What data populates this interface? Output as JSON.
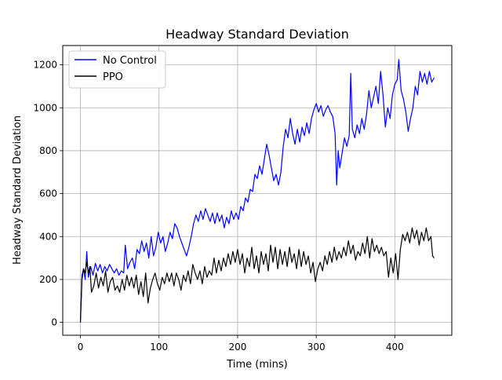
{
  "chart_data": {
    "type": "line",
    "title": "Headway Standard Deviation",
    "xlabel": "Time (mins)",
    "ylabel": "Headway Standard Deviation",
    "xlim": [
      -22.5,
      472.5
    ],
    "ylim": [
      -60,
      1290
    ],
    "xticks": [
      0,
      100,
      200,
      300,
      400
    ],
    "yticks": [
      0,
      200,
      400,
      600,
      800,
      1000,
      1200
    ],
    "grid": true,
    "legend_position": "top-left",
    "series": [
      {
        "name": "No Control",
        "color": "#0000ff",
        "points": [
          [
            0,
            0
          ],
          [
            2,
            220
          ],
          [
            4,
            250
          ],
          [
            6,
            200
          ],
          [
            8,
            330
          ],
          [
            10,
            210
          ],
          [
            13,
            260
          ],
          [
            16,
            220
          ],
          [
            19,
            275
          ],
          [
            22,
            240
          ],
          [
            25,
            270
          ],
          [
            28,
            230
          ],
          [
            31,
            260
          ],
          [
            34,
            240
          ],
          [
            37,
            270
          ],
          [
            40,
            250
          ],
          [
            43,
            230
          ],
          [
            46,
            250
          ],
          [
            49,
            220
          ],
          [
            52,
            240
          ],
          [
            55,
            230
          ],
          [
            57,
            360
          ],
          [
            60,
            250
          ],
          [
            63,
            280
          ],
          [
            66,
            300
          ],
          [
            69,
            250
          ],
          [
            72,
            340
          ],
          [
            75,
            320
          ],
          [
            78,
            380
          ],
          [
            81,
            330
          ],
          [
            84,
            370
          ],
          [
            87,
            300
          ],
          [
            90,
            400
          ],
          [
            93,
            310
          ],
          [
            96,
            350
          ],
          [
            99,
            420
          ],
          [
            102,
            370
          ],
          [
            105,
            400
          ],
          [
            108,
            330
          ],
          [
            111,
            370
          ],
          [
            114,
            420
          ],
          [
            117,
            390
          ],
          [
            120,
            460
          ],
          [
            123,
            440
          ],
          [
            126,
            400
          ],
          [
            129,
            370
          ],
          [
            132,
            340
          ],
          [
            135,
            310
          ],
          [
            138,
            350
          ],
          [
            141,
            400
          ],
          [
            144,
            460
          ],
          [
            147,
            500
          ],
          [
            150,
            470
          ],
          [
            153,
            520
          ],
          [
            156,
            480
          ],
          [
            159,
            530
          ],
          [
            162,
            500
          ],
          [
            165,
            470
          ],
          [
            168,
            510
          ],
          [
            171,
            460
          ],
          [
            174,
            510
          ],
          [
            177,
            470
          ],
          [
            180,
            500
          ],
          [
            183,
            440
          ],
          [
            186,
            490
          ],
          [
            189,
            460
          ],
          [
            192,
            520
          ],
          [
            195,
            480
          ],
          [
            198,
            510
          ],
          [
            201,
            480
          ],
          [
            204,
            540
          ],
          [
            207,
            520
          ],
          [
            210,
            580
          ],
          [
            213,
            560
          ],
          [
            216,
            620
          ],
          [
            219,
            610
          ],
          [
            222,
            690
          ],
          [
            225,
            670
          ],
          [
            228,
            730
          ],
          [
            231,
            690
          ],
          [
            234,
            760
          ],
          [
            237,
            830
          ],
          [
            240,
            780
          ],
          [
            243,
            720
          ],
          [
            246,
            660
          ],
          [
            249,
            690
          ],
          [
            252,
            640
          ],
          [
            255,
            700
          ],
          [
            258,
            820
          ],
          [
            261,
            900
          ],
          [
            264,
            860
          ],
          [
            267,
            950
          ],
          [
            270,
            880
          ],
          [
            273,
            830
          ],
          [
            276,
            900
          ],
          [
            279,
            840
          ],
          [
            282,
            910
          ],
          [
            285,
            870
          ],
          [
            288,
            930
          ],
          [
            291,
            880
          ],
          [
            294,
            950
          ],
          [
            297,
            990
          ],
          [
            300,
            1020
          ],
          [
            303,
            980
          ],
          [
            306,
            1010
          ],
          [
            309,
            960
          ],
          [
            312,
            990
          ],
          [
            315,
            1010
          ],
          [
            318,
            980
          ],
          [
            321,
            960
          ],
          [
            324,
            880
          ],
          [
            326,
            640
          ],
          [
            328,
            800
          ],
          [
            330,
            720
          ],
          [
            333,
            790
          ],
          [
            336,
            860
          ],
          [
            339,
            820
          ],
          [
            342,
            870
          ],
          [
            344,
            1160
          ],
          [
            346,
            900
          ],
          [
            349,
            860
          ],
          [
            352,
            920
          ],
          [
            355,
            880
          ],
          [
            358,
            950
          ],
          [
            361,
            900
          ],
          [
            364,
            970
          ],
          [
            367,
            1080
          ],
          [
            370,
            1000
          ],
          [
            373,
            1050
          ],
          [
            376,
            1100
          ],
          [
            379,
            1020
          ],
          [
            382,
            1170
          ],
          [
            385,
            1060
          ],
          [
            388,
            910
          ],
          [
            391,
            1000
          ],
          [
            394,
            950
          ],
          [
            397,
            1060
          ],
          [
            400,
            1110
          ],
          [
            403,
            1130
          ],
          [
            405,
            1225
          ],
          [
            408,
            1080
          ],
          [
            411,
            1040
          ],
          [
            414,
            980
          ],
          [
            417,
            890
          ],
          [
            420,
            950
          ],
          [
            423,
            1000
          ],
          [
            426,
            1100
          ],
          [
            429,
            1060
          ],
          [
            432,
            1170
          ],
          [
            435,
            1120
          ],
          [
            438,
            1160
          ],
          [
            441,
            1110
          ],
          [
            444,
            1170
          ],
          [
            447,
            1120
          ],
          [
            450,
            1140
          ]
        ]
      },
      {
        "name": "PPO",
        "color": "#000000",
        "points": [
          [
            0,
            0
          ],
          [
            2,
            200
          ],
          [
            4,
            250
          ],
          [
            6,
            230
          ],
          [
            8,
            280
          ],
          [
            10,
            230
          ],
          [
            12,
            260
          ],
          [
            14,
            140
          ],
          [
            17,
            170
          ],
          [
            20,
            230
          ],
          [
            23,
            160
          ],
          [
            26,
            210
          ],
          [
            29,
            170
          ],
          [
            32,
            240
          ],
          [
            35,
            140
          ],
          [
            38,
            190
          ],
          [
            41,
            210
          ],
          [
            44,
            150
          ],
          [
            47,
            170
          ],
          [
            50,
            140
          ],
          [
            53,
            200
          ],
          [
            56,
            150
          ],
          [
            59,
            220
          ],
          [
            62,
            170
          ],
          [
            65,
            210
          ],
          [
            68,
            160
          ],
          [
            71,
            220
          ],
          [
            74,
            130
          ],
          [
            77,
            190
          ],
          [
            80,
            120
          ],
          [
            83,
            230
          ],
          [
            86,
            90
          ],
          [
            89,
            160
          ],
          [
            92,
            200
          ],
          [
            95,
            230
          ],
          [
            98,
            180
          ],
          [
            101,
            150
          ],
          [
            104,
            210
          ],
          [
            107,
            180
          ],
          [
            110,
            230
          ],
          [
            113,
            190
          ],
          [
            116,
            230
          ],
          [
            119,
            170
          ],
          [
            122,
            230
          ],
          [
            125,
            200
          ],
          [
            128,
            150
          ],
          [
            131,
            220
          ],
          [
            134,
            190
          ],
          [
            137,
            240
          ],
          [
            140,
            180
          ],
          [
            143,
            270
          ],
          [
            146,
            230
          ],
          [
            149,
            200
          ],
          [
            152,
            240
          ],
          [
            155,
            180
          ],
          [
            158,
            260
          ],
          [
            161,
            210
          ],
          [
            164,
            240
          ],
          [
            167,
            220
          ],
          [
            170,
            300
          ],
          [
            173,
            230
          ],
          [
            176,
            290
          ],
          [
            179,
            240
          ],
          [
            182,
            300
          ],
          [
            185,
            260
          ],
          [
            188,
            320
          ],
          [
            191,
            270
          ],
          [
            194,
            330
          ],
          [
            197,
            280
          ],
          [
            200,
            340
          ],
          [
            203,
            270
          ],
          [
            206,
            320
          ],
          [
            209,
            230
          ],
          [
            212,
            300
          ],
          [
            215,
            260
          ],
          [
            218,
            350
          ],
          [
            221,
            250
          ],
          [
            224,
            310
          ],
          [
            227,
            230
          ],
          [
            230,
            330
          ],
          [
            233,
            270
          ],
          [
            236,
            320
          ],
          [
            239,
            240
          ],
          [
            242,
            360
          ],
          [
            245,
            280
          ],
          [
            248,
            350
          ],
          [
            251,
            250
          ],
          [
            254,
            340
          ],
          [
            257,
            270
          ],
          [
            260,
            330
          ],
          [
            263,
            260
          ],
          [
            266,
            350
          ],
          [
            269,
            280
          ],
          [
            272,
            320
          ],
          [
            275,
            250
          ],
          [
            278,
            340
          ],
          [
            281,
            260
          ],
          [
            284,
            330
          ],
          [
            287,
            270
          ],
          [
            290,
            310
          ],
          [
            293,
            230
          ],
          [
            296,
            280
          ],
          [
            299,
            190
          ],
          [
            302,
            250
          ],
          [
            305,
            280
          ],
          [
            308,
            240
          ],
          [
            311,
            310
          ],
          [
            314,
            270
          ],
          [
            317,
            330
          ],
          [
            320,
            280
          ],
          [
            323,
            350
          ],
          [
            326,
            290
          ],
          [
            329,
            330
          ],
          [
            332,
            300
          ],
          [
            335,
            350
          ],
          [
            338,
            310
          ],
          [
            341,
            380
          ],
          [
            344,
            320
          ],
          [
            347,
            360
          ],
          [
            350,
            290
          ],
          [
            353,
            330
          ],
          [
            356,
            310
          ],
          [
            359,
            370
          ],
          [
            362,
            320
          ],
          [
            365,
            400
          ],
          [
            368,
            300
          ],
          [
            371,
            390
          ],
          [
            374,
            330
          ],
          [
            377,
            360
          ],
          [
            380,
            320
          ],
          [
            383,
            350
          ],
          [
            386,
            310
          ],
          [
            389,
            330
          ],
          [
            392,
            210
          ],
          [
            395,
            300
          ],
          [
            398,
            230
          ],
          [
            401,
            320
          ],
          [
            404,
            200
          ],
          [
            407,
            340
          ],
          [
            410,
            410
          ],
          [
            413,
            380
          ],
          [
            416,
            420
          ],
          [
            419,
            370
          ],
          [
            422,
            440
          ],
          [
            425,
            390
          ],
          [
            428,
            430
          ],
          [
            431,
            360
          ],
          [
            434,
            420
          ],
          [
            437,
            380
          ],
          [
            440,
            440
          ],
          [
            443,
            380
          ],
          [
            446,
            400
          ],
          [
            448,
            310
          ],
          [
            450,
            300
          ]
        ]
      }
    ]
  }
}
